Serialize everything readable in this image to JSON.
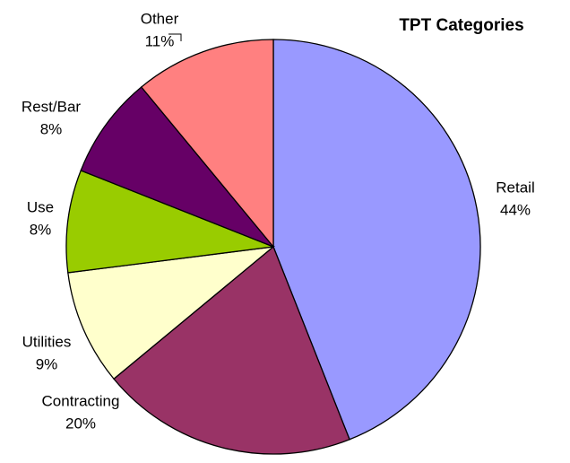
{
  "chart_data": {
    "type": "pie",
    "title": "TPT Categories",
    "categories": [
      "Retail",
      "Contracting",
      "Utilities",
      "Use",
      "Rest/Bar",
      "Other"
    ],
    "values": [
      44,
      20,
      9,
      8,
      8,
      11
    ],
    "value_labels": [
      "44%",
      "20%",
      "9%",
      "8%",
      "8%",
      "11%"
    ],
    "colors": [
      "#9999ff",
      "#993366",
      "#ffffcc",
      "#99cc00",
      "#660066",
      "#ff8080"
    ]
  }
}
